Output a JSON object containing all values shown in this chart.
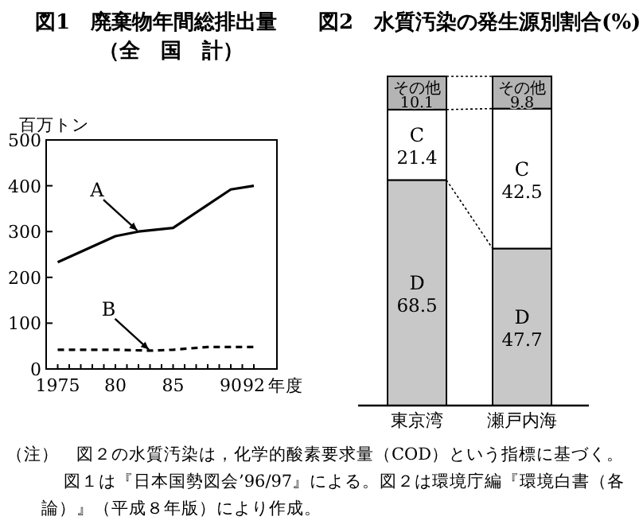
{
  "chart_data": [
    {
      "type": "line",
      "title": "図1　廃棄物年間総排出量",
      "subtitle": "（全　国　計）",
      "ylabel": "百万トン",
      "xlabel": "年度",
      "xlim": [
        1974,
        1994
      ],
      "ylim": [
        0,
        500
      ],
      "xticks": [
        1975,
        {
          "value": 1976,
          "label": null
        },
        {
          "value": 1977,
          "label": null
        },
        {
          "value": 1978,
          "label": null
        },
        {
          "value": 1979,
          "label": null
        },
        {
          "value": 1980,
          "label": "80"
        },
        {
          "value": 1981,
          "label": null
        },
        {
          "value": 1982,
          "label": null
        },
        {
          "value": 1983,
          "label": null
        },
        {
          "value": 1984,
          "label": null
        },
        {
          "value": 1985,
          "label": "85"
        },
        {
          "value": 1986,
          "label": null
        },
        {
          "value": 1987,
          "label": null
        },
        {
          "value": 1988,
          "label": null
        },
        {
          "value": 1989,
          "label": null
        },
        {
          "value": 1990,
          "label": "90"
        },
        {
          "value": 1991,
          "label": null
        },
        {
          "value": 1992,
          "label": "92"
        }
      ],
      "yticks": [
        0,
        100,
        200,
        300,
        400,
        500
      ],
      "series": [
        {
          "name": "A",
          "color": "#000000",
          "line_style": "solid",
          "x": [
            1975,
            1980,
            1982,
            1985,
            1990,
            1992
          ],
          "values": [
            233,
            290,
            300,
            308,
            392,
            400
          ]
        },
        {
          "name": "B",
          "color": "#000000",
          "line_style": "dashed",
          "x": [
            1975,
            1980,
            1983,
            1985,
            1988,
            1992
          ],
          "values": [
            42,
            42,
            40,
            42,
            48,
            48
          ]
        }
      ],
      "grid": false,
      "legend": false,
      "marker": "none"
    },
    {
      "type": "bar",
      "title": "図2　水質汚染の発生源別割合(%)",
      "categories": [
        "東京湾",
        "瀬戸内海"
      ],
      "stacked": true,
      "data_labels": true,
      "series": [
        {
          "name": "D",
          "color": "#c8c8c8",
          "values": [
            68.5,
            47.7
          ]
        },
        {
          "name": "C",
          "color": "#ffffff",
          "values": [
            21.4,
            42.5
          ]
        },
        {
          "name": "その他",
          "color": "#b4b4b4",
          "values": [
            10.1,
            9.8
          ]
        }
      ]
    },
    {
      "type": "other",
      "annotations": [
        "（注）　図２の水質汚染は，化学的酸素要求量（COD）という指標に基づく。",
        "図１は『日本国勢図会’96/97』による。図２は環境庁編『環境白書（各",
        "論）』（平成８年版）により作成。"
      ]
    }
  ]
}
